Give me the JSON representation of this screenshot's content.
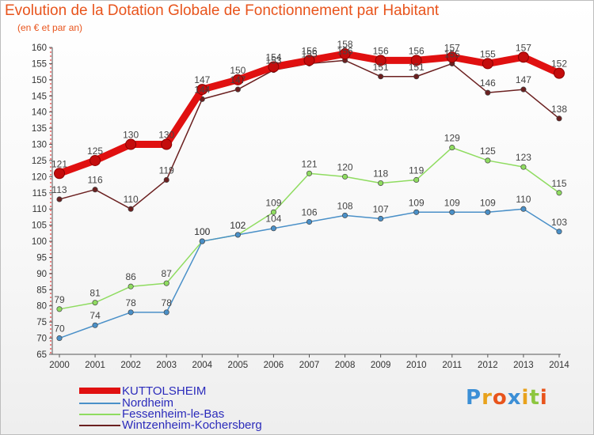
{
  "title": "Evolution de la Dotation Globale de Fonctionnement par Habitant",
  "subtitle": "(en € et par an)",
  "logo": {
    "text": "Proxiti",
    "letters": [
      "P",
      "r",
      "o",
      "x",
      "i",
      "t",
      "i"
    ],
    "colors": [
      "#3c8fd6",
      "#e8a21c",
      "#e8541c",
      "#3c8fd6",
      "#e8a21c",
      "#8dc63f",
      "#e8541c"
    ]
  },
  "chart_data": {
    "type": "line",
    "title": "Evolution de la Dotation Globale de Fonctionnement par Habitant",
    "subtitle": "(en € et par an)",
    "xlabel": "",
    "ylabel": "",
    "ylim": [
      65,
      160
    ],
    "ytick_step": 5,
    "grid": false,
    "legend_position": "bottom-left",
    "x": [
      "2000",
      "2001",
      "2002",
      "2003",
      "2004",
      "2005",
      "2006",
      "2007",
      "2008",
      "2009",
      "2010",
      "2011",
      "2012",
      "2013",
      "2014"
    ],
    "series": [
      {
        "name": "KUTTOLSHEIM",
        "color": "#e01010",
        "values": [
          121,
          125,
          130,
          130,
          147,
          150,
          154,
          156,
          158,
          156,
          156,
          157,
          155,
          157,
          152
        ]
      },
      {
        "name": "Nordheim",
        "color": "#4a90c8",
        "values": [
          70,
          74,
          78,
          78,
          100,
          102,
          104,
          106,
          108,
          107,
          109,
          109,
          109,
          110,
          103
        ]
      },
      {
        "name": "Fessenheim-le-Bas",
        "color": "#8fdc60",
        "values": [
          79,
          81,
          86,
          87,
          100,
          102,
          109,
          121,
          120,
          118,
          119,
          129,
          125,
          123,
          115
        ]
      },
      {
        "name": "Wintzenheim-Kochersberg",
        "color": "#6b2020",
        "values": [
          113,
          116,
          110,
          119,
          144,
          147,
          153,
          155,
          156,
          151,
          151,
          155,
          146,
          147,
          138
        ]
      }
    ]
  }
}
